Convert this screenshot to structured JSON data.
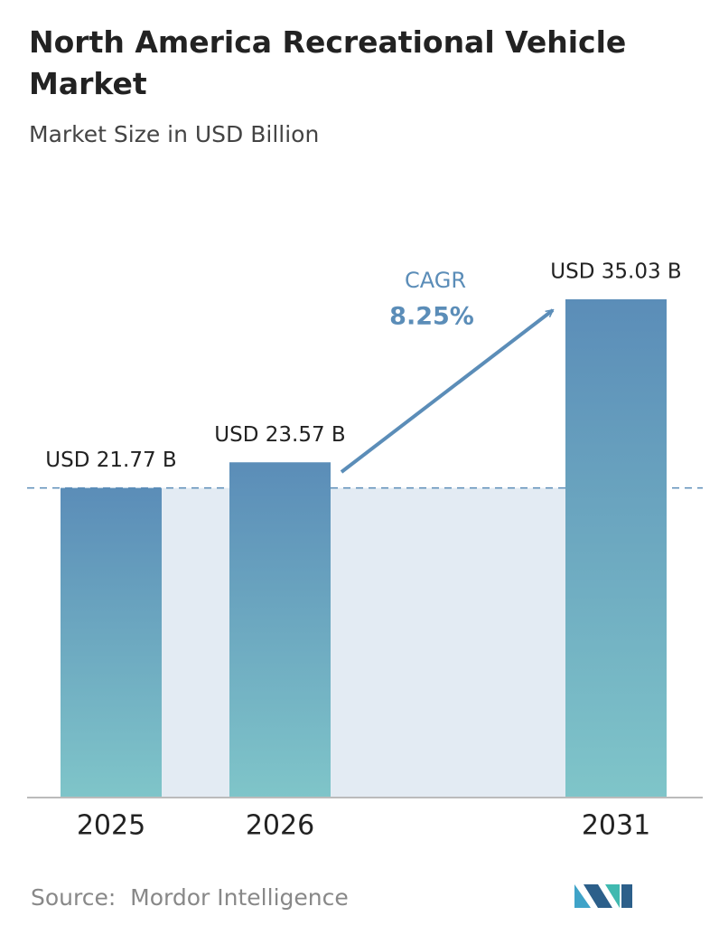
{
  "chart_data": {
    "type": "bar",
    "title": "North America Recreational Vehicle Market",
    "subtitle": "Market Size in USD Billion",
    "categories": [
      "2025",
      "2026",
      "2031"
    ],
    "values": [
      21.77,
      23.57,
      35.03
    ],
    "value_labels": [
      "USD 21.77 B",
      "USD 23.57 B",
      "USD 35.03 B"
    ],
    "gradient": [
      "#5b8db8",
      "#7fc5c9"
    ],
    "annotation": {
      "label": "CAGR",
      "value": "8.25%"
    },
    "source": "Source:  Mordor Intelligence"
  }
}
